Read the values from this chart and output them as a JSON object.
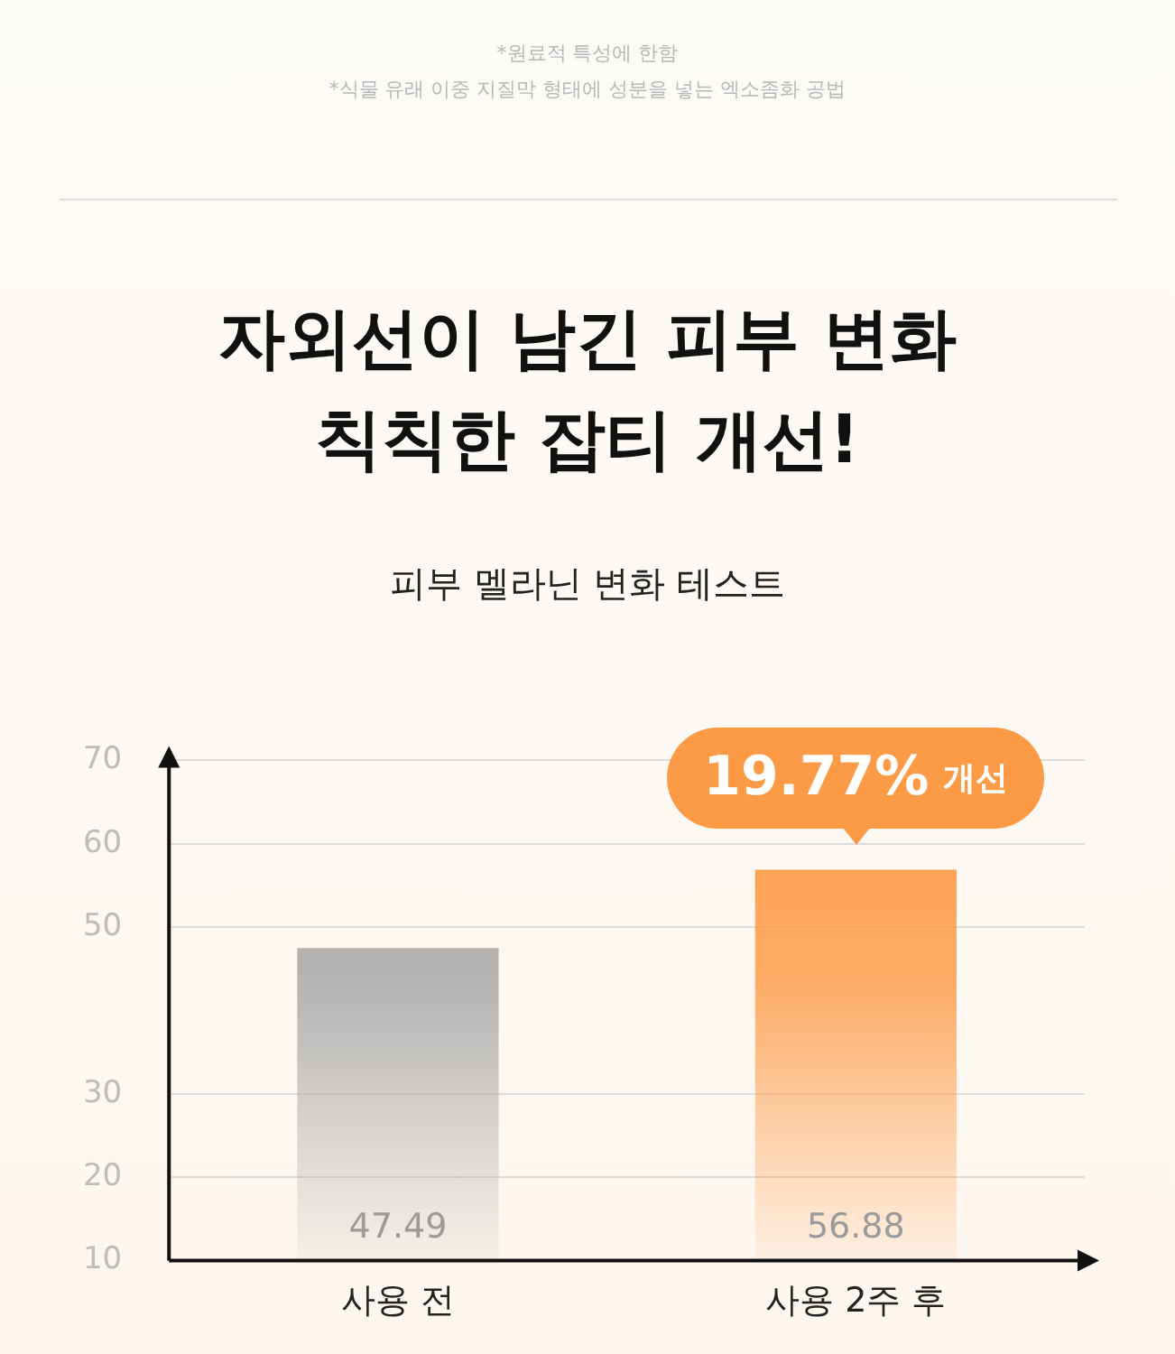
{
  "chart_data": {
    "type": "bar",
    "title": "자외선이 남긴 피부 변화\n칙칙한 잡티 개선!",
    "subtitle": "피부 멜라닌 변화 테스트",
    "categories": [
      "사용 전",
      "사용 2주 후"
    ],
    "values": [
      47.49,
      56.88
    ],
    "colors": [
      "#a3a3a3",
      "#fd9a45"
    ],
    "ylim": [
      10,
      70
    ],
    "yticks": [
      10,
      20,
      30,
      50,
      60,
      70
    ],
    "grid": "y",
    "data_labels": true,
    "annotations": [
      "*원료적 특성에 한함",
      "*식물 유래 이중 지질막 형태에 성분을 넣는 엑소좀화 공법",
      {
        "text": "19.77% 개선",
        "x": "사용 2주 후",
        "y": 56.88
      }
    ]
  }
}
